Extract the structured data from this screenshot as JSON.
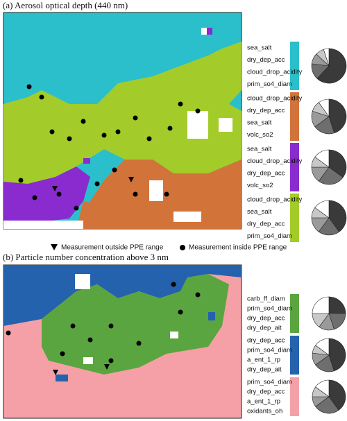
{
  "panels": [
    {
      "title": "(a) Aerosol optical depth (440 nm)",
      "clusters": [
        {
          "color": "#2bbfcb",
          "params": [
            "sea_salt",
            "dry_dep_acc",
            "cloud_drop_acidity",
            "prim_so4_diam"
          ],
          "pie": [
            62,
            15,
            10,
            8,
            5
          ]
        },
        {
          "color": "#d2733a",
          "params": [
            "cloud_drop_acidity",
            "dry_dep_acc",
            "sea_salt",
            "volc_so2"
          ],
          "pie": [
            45,
            20,
            15,
            10,
            10
          ]
        },
        {
          "color": "#8a2bcf",
          "params": [
            "sea_salt",
            "cloud_drop_acidity",
            "dry_dep_acc",
            "volc_so2"
          ],
          "pie": [
            35,
            25,
            15,
            10,
            15
          ]
        },
        {
          "color": "#a3cc2a",
          "params": [
            "cloud_drop_acidity",
            "sea_salt",
            "dry_dep_acc",
            "prim_so4_diam"
          ],
          "pie": [
            40,
            20,
            15,
            10,
            15
          ]
        }
      ]
    },
    {
      "title": "(b) Particle number concentration above 3 nm",
      "clusters": [
        {
          "color": "#5aa53f",
          "params": [
            "carb_ff_diam",
            "prim_so4_diam",
            "dry_dep_acc",
            "dry_dep_ait"
          ],
          "pie": [
            25,
            20,
            15,
            15,
            25
          ]
        },
        {
          "color": "#2462ad",
          "params": [
            "dry_dep_acc",
            "prim_so4_diam",
            "a_ent_1_rp",
            "dry_dep_ait"
          ],
          "pie": [
            45,
            20,
            12,
            8,
            15
          ]
        },
        {
          "color": "#f4a0a6",
          "params": [
            "prim_so4_diam",
            "dry_dep_acc",
            "a_ent_1_rp",
            "oxidants_oh"
          ],
          "pie": [
            40,
            25,
            10,
            10,
            15
          ]
        }
      ]
    }
  ],
  "pie_colors": [
    "#3a3a3a",
    "#6e6e6e",
    "#9a9a9a",
    "#c8c8c8",
    "#ffffff"
  ],
  "markers_legend": {
    "outside": "Measurement outside PPE range",
    "inside": "Measurement inside PPE range"
  }
}
